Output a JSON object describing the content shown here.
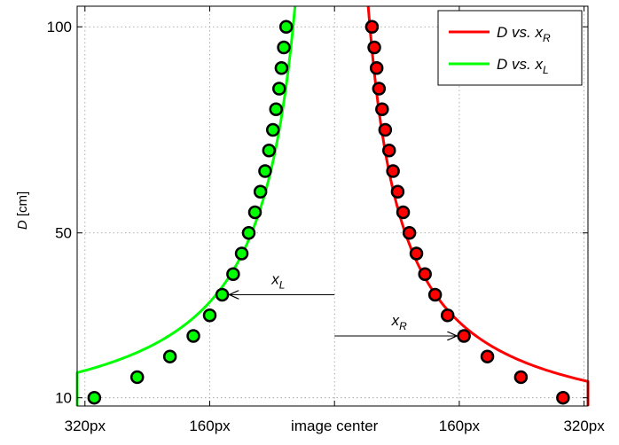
{
  "chart_data": {
    "type": "scatter",
    "title": "",
    "ylabel": {
      "var": "D",
      "unit": "[cm]"
    },
    "x_tick_labels": [
      "320px",
      "160px",
      "image center",
      "160px",
      "320px"
    ],
    "x_ticks": [
      -320,
      -160,
      0,
      160,
      320
    ],
    "y_ticks": [
      10,
      50,
      100
    ],
    "xlim": [
      -330,
      325
    ],
    "ylim": [
      8,
      105
    ],
    "grid": true,
    "legend": {
      "position": "top-right",
      "entries": [
        {
          "base": "D vs. x",
          "sub": "R",
          "color": "#ff0000"
        },
        {
          "base": "D vs. x",
          "sub": "L",
          "color": "#00ff00"
        }
      ]
    },
    "series": [
      {
        "side": "R",
        "line_color": "#ff0000",
        "marker_color": "#ff0000",
        "points": [
          {
            "x": 293,
            "y": 10
          },
          {
            "x": 239,
            "y": 15
          },
          {
            "x": 196,
            "y": 20
          },
          {
            "x": 166,
            "y": 25
          },
          {
            "x": 145,
            "y": 30
          },
          {
            "x": 129,
            "y": 35
          },
          {
            "x": 116,
            "y": 40
          },
          {
            "x": 105,
            "y": 45
          },
          {
            "x": 96,
            "y": 50
          },
          {
            "x": 88,
            "y": 55
          },
          {
            "x": 81,
            "y": 60
          },
          {
            "x": 75,
            "y": 65
          },
          {
            "x": 70,
            "y": 70
          },
          {
            "x": 65,
            "y": 75
          },
          {
            "x": 61,
            "y": 80
          },
          {
            "x": 57,
            "y": 85
          },
          {
            "x": 54,
            "y": 90
          },
          {
            "x": 51,
            "y": 95
          },
          {
            "x": 48,
            "y": 100
          }
        ]
      },
      {
        "side": "L",
        "line_color": "#00ff00",
        "marker_color": "#00ff00",
        "points": [
          {
            "x": -308,
            "y": 10
          },
          {
            "x": -253,
            "y": 15
          },
          {
            "x": -211,
            "y": 20
          },
          {
            "x": -181,
            "y": 25
          },
          {
            "x": -160,
            "y": 30
          },
          {
            "x": -144,
            "y": 35
          },
          {
            "x": -130,
            "y": 40
          },
          {
            "x": -119,
            "y": 45
          },
          {
            "x": -110,
            "y": 50
          },
          {
            "x": -102,
            "y": 55
          },
          {
            "x": -95,
            "y": 60
          },
          {
            "x": -89,
            "y": 65
          },
          {
            "x": -84,
            "y": 70
          },
          {
            "x": -79,
            "y": 75
          },
          {
            "x": -75,
            "y": 80
          },
          {
            "x": -71,
            "y": 85
          },
          {
            "x": -68,
            "y": 90
          },
          {
            "x": -65,
            "y": 95
          },
          {
            "x": -62,
            "y": 100
          }
        ]
      }
    ],
    "annotations": [
      {
        "label_base": "x",
        "label_sub": "L",
        "from_x": 0,
        "to_x": -144,
        "y": 35
      },
      {
        "label_base": "x",
        "label_sub": "R",
        "from_x": 0,
        "to_x": 166,
        "y": 25
      }
    ]
  }
}
